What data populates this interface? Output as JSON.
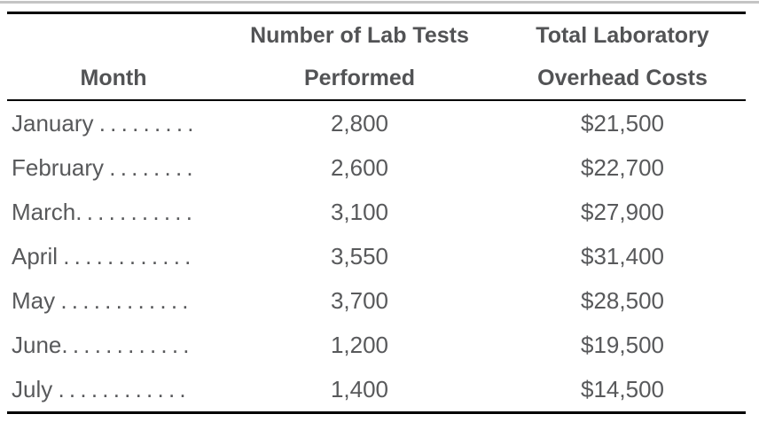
{
  "page": {
    "background_color": "#ffffff",
    "top_divider_color": "#c4c4c4",
    "rule_color": "#000000",
    "text_color": "#58595b"
  },
  "table": {
    "header": {
      "col1": {
        "line1": "",
        "line2": "Month"
      },
      "col2": {
        "line1": "Number of Lab Tests",
        "line2": "Performed"
      },
      "col3": {
        "line1": "Total Laboratory",
        "line2": "Overhead Costs"
      }
    },
    "rows": [
      {
        "month": "January",
        "leader": " . . . . . . . . .",
        "tests": "2,800",
        "cost": "$21,500"
      },
      {
        "month": "February",
        "leader": " . . . . . . . .",
        "tests": "2,600",
        "cost": "$22,700"
      },
      {
        "month": "March",
        "leader": ". . . . . . . . . . .",
        "tests": "3,100",
        "cost": "$27,900"
      },
      {
        "month": "April",
        "leader": " . . . . . . . . . . . .",
        "tests": "3,550",
        "cost": "$31,400"
      },
      {
        "month": "May",
        "leader": " . . . . . . . . . . . .",
        "tests": "3,700",
        "cost": "$28,500"
      },
      {
        "month": "June",
        "leader": ". . . . . . . . . . . .",
        "tests": "1,200",
        "cost": "$19,500"
      },
      {
        "month": "July",
        "leader": " . . . . . . . . . . . .",
        "tests": "1,400",
        "cost": "$14,500"
      }
    ]
  },
  "chart_data": {
    "type": "table",
    "title": "",
    "columns": [
      "Month",
      "Number of Lab Tests Performed",
      "Total Laboratory Overhead Costs"
    ],
    "rows": [
      [
        "January",
        2800,
        21500
      ],
      [
        "February",
        2600,
        22700
      ],
      [
        "March",
        3100,
        27900
      ],
      [
        "April",
        3550,
        31400
      ],
      [
        "May",
        3700,
        28500
      ],
      [
        "June",
        1200,
        19500
      ],
      [
        "July",
        1400,
        14500
      ]
    ]
  }
}
